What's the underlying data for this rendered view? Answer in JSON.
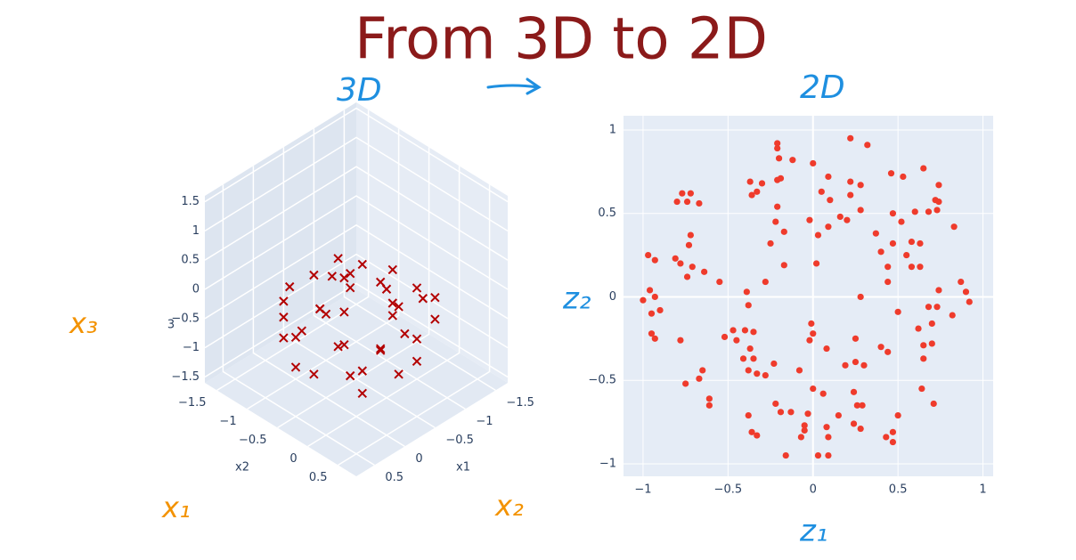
{
  "title": "From 3D to 2D",
  "notes": {
    "left_heading": "3D",
    "right_heading": "2D",
    "x3": "x₃",
    "x1": "x₁",
    "x2": "x₂",
    "z1": "z₁",
    "z2": "z₂"
  },
  "chart_data": [
    {
      "type": "scatter3d",
      "marker": "x",
      "color": "#b30000",
      "xlabel": "x1",
      "ylabel": "x2",
      "zlabel": "3",
      "x": [
        0.5,
        -0.3,
        0.7,
        -0.6,
        0.1,
        0.3,
        -0.8,
        0.6,
        -0.2,
        0.8,
        -0.5,
        0.2,
        -0.7,
        0.4,
        0.0,
        -0.4,
        0.6,
        -0.1,
        0.3,
        -0.6,
        0.7,
        -0.3,
        0.5,
        -0.8,
        0.1,
        0.4,
        -0.5,
        0.8,
        -0.2,
        0.2,
        0.0,
        -0.7,
        0.6,
        -0.4,
        0.3,
        -0.1,
        0.5,
        -0.6,
        0.2,
        0.7
      ],
      "y": [
        0.6,
        0.7,
        -0.3,
        0.4,
        0.8,
        -0.7,
        -0.2,
        0.5,
        -0.8,
        0.1,
        -0.6,
        0.3,
        0.6,
        -0.5,
        -0.2,
        0.2,
        -0.6,
        0.7,
        0.7,
        -0.5,
        0.4,
        -0.4,
        -0.1,
        0.3,
        -0.6,
        0.8,
        0.5,
        -0.4,
        0.2,
        -0.2,
        0.5,
        -0.1,
        0.1,
        -0.7,
        -0.8,
        0.6,
        0.3,
        0.7,
        0.0,
        -0.5
      ],
      "z": [
        -0.5,
        -0.4,
        -0.5,
        -0.4,
        -0.3,
        -0.5,
        -0.3,
        -0.2,
        -0.4,
        -0.3,
        -0.1,
        -0.5,
        0.0,
        -0.2,
        -0.5,
        0.0,
        0.1,
        0.2,
        0.2,
        0.3,
        0.3,
        0.4,
        0.5,
        0.1,
        0.5,
        0.3,
        0.6,
        0.0,
        0.7,
        0.8,
        0.9,
        0.4,
        0.6,
        0.4,
        0.3,
        0.6,
        0.7,
        0.5,
        0.9,
        0.5
      ],
      "xlim": [
        -1.7,
        0.8
      ],
      "ylim": [
        -1.7,
        0.8
      ],
      "zlim": [
        -1.6,
        1.6
      ],
      "xticks": [
        {
          "value": -1.5,
          "label": "−1.5"
        },
        {
          "value": -1,
          "label": "−1"
        },
        {
          "value": -0.5,
          "label": "−0.5"
        },
        0,
        0.5
      ],
      "yticks": [
        {
          "value": -1.5,
          "label": "−1.5"
        },
        {
          "value": -1,
          "label": "−1"
        },
        {
          "value": -0.5,
          "label": "−0.5"
        },
        0,
        0.5
      ],
      "zticks": [
        {
          "value": -1.5,
          "label": "−1.5"
        },
        {
          "value": -1,
          "label": "−1"
        },
        {
          "value": -0.5,
          "label": "−0.5"
        },
        0,
        0.5,
        1,
        1.5
      ]
    },
    {
      "type": "scatter",
      "color": "#ef3b2c",
      "grid": true,
      "background": "#e5ecf6",
      "x": [
        0.22,
        0.32,
        -0.21,
        -0.21,
        -0.12,
        -0.2,
        0,
        -0.37,
        -0.3,
        -0.33,
        -0.36,
        -0.21,
        -0.19,
        0.09,
        0.22,
        0.28,
        0.22,
        0.1,
        0.05,
        -0.77,
        -0.72,
        -0.8,
        -0.67,
        -0.74,
        0.46,
        0.53,
        0.65,
        0.74,
        0.72,
        0.74,
        0.68,
        0.73,
        0.6,
        0.28,
        0.16,
        0.2,
        0.09,
        0.03,
        -0.02,
        -0.21,
        -0.22,
        -0.25,
        -0.17,
        0.47,
        0.52,
        0.37,
        0.47,
        0.58,
        0.4,
        0.55,
        0.63,
        0.58,
        0.44,
        0.63,
        0.83,
        -0.72,
        -0.73,
        -0.97,
        -0.93,
        -0.81,
        -0.78,
        -0.71,
        -0.64,
        -0.74,
        -0.55,
        -0.17,
        0.02,
        -0.28,
        0.44,
        0.74,
        -0.96,
        -0.93,
        -1.0,
        -0.95,
        -0.9,
        -0.39,
        -0.38,
        0.28,
        0.87,
        0.9,
        0.92,
        0.68,
        0.73,
        0.82,
        0.5,
        0.7,
        0.62,
        0.65,
        0.7,
        0.65,
        -0.4,
        -0.35,
        -0.47,
        -0.52,
        -0.45,
        -0.37,
        -0.41,
        -0.35,
        -0.95,
        -0.93,
        -0.78,
        -0.01,
        0.0,
        -0.02,
        0.08,
        0.25,
        0.4,
        0.44,
        0.25,
        0.3,
        0.19,
        -0.23,
        -0.33,
        -0.28,
        -0.08,
        -0.38,
        -0.65,
        -0.67,
        -0.75,
        -0.61,
        -0.61,
        0.0,
        0.06,
        0.24,
        0.26,
        0.29,
        0.64,
        0.71,
        -0.22,
        -0.19,
        -0.13,
        -0.38,
        -0.03,
        0.15,
        0.24,
        0.28,
        0.5,
        0.43,
        0.47,
        0.47,
        -0.05,
        -0.05,
        0.08,
        -0.36,
        -0.33,
        -0.07,
        -0.16,
        0.03,
        0.09,
        0.09
      ],
      "y": [
        0.95,
        0.91,
        0.92,
        0.89,
        0.82,
        0.83,
        0.8,
        0.69,
        0.68,
        0.63,
        0.61,
        0.7,
        0.71,
        0.72,
        0.69,
        0.67,
        0.61,
        0.58,
        0.63,
        0.62,
        0.62,
        0.57,
        0.56,
        0.57,
        0.74,
        0.72,
        0.77,
        0.67,
        0.58,
        0.57,
        0.51,
        0.52,
        0.51,
        0.52,
        0.48,
        0.46,
        0.42,
        0.37,
        0.46,
        0.54,
        0.45,
        0.32,
        0.39,
        0.5,
        0.45,
        0.38,
        0.32,
        0.33,
        0.27,
        0.25,
        0.32,
        0.18,
        0.18,
        0.18,
        0.42,
        0.37,
        0.31,
        0.25,
        0.22,
        0.23,
        0.2,
        0.18,
        0.15,
        0.12,
        0.09,
        0.19,
        0.2,
        0.09,
        0.09,
        0.04,
        0.04,
        0.0,
        -0.02,
        -0.1,
        -0.08,
        0.03,
        -0.05,
        0.0,
        0.09,
        0.03,
        -0.03,
        -0.06,
        -0.06,
        -0.11,
        -0.09,
        -0.16,
        -0.19,
        -0.29,
        -0.28,
        -0.37,
        -0.2,
        -0.21,
        -0.2,
        -0.24,
        -0.26,
        -0.31,
        -0.37,
        -0.37,
        -0.22,
        -0.25,
        -0.26,
        -0.16,
        -0.22,
        -0.26,
        -0.31,
        -0.25,
        -0.3,
        -0.33,
        -0.39,
        -0.41,
        -0.41,
        -0.4,
        -0.46,
        -0.47,
        -0.44,
        -0.44,
        -0.44,
        -0.49,
        -0.52,
        -0.61,
        -0.65,
        -0.55,
        -0.58,
        -0.57,
        -0.65,
        -0.65,
        -0.55,
        -0.64,
        -0.64,
        -0.69,
        -0.69,
        -0.71,
        -0.7,
        -0.71,
        -0.76,
        -0.79,
        -0.71,
        -0.84,
        -0.87,
        -0.81,
        -0.77,
        -0.8,
        -0.78,
        -0.81,
        -0.83,
        -0.84,
        -0.95,
        -0.95,
        -0.95,
        -0.84
      ],
      "xlim": [
        -1.115,
        1.06
      ],
      "ylim": [
        -1.075,
        1.085
      ],
      "xticks": [
        {
          "value": -1,
          "label": "−1"
        },
        {
          "value": -0.5,
          "label": "−0.5"
        },
        0,
        0.5,
        1
      ],
      "yticks": [
        {
          "value": -1,
          "label": "−1"
        },
        {
          "value": -0.5,
          "label": "−0.5"
        },
        0,
        0.5,
        1
      ]
    }
  ]
}
